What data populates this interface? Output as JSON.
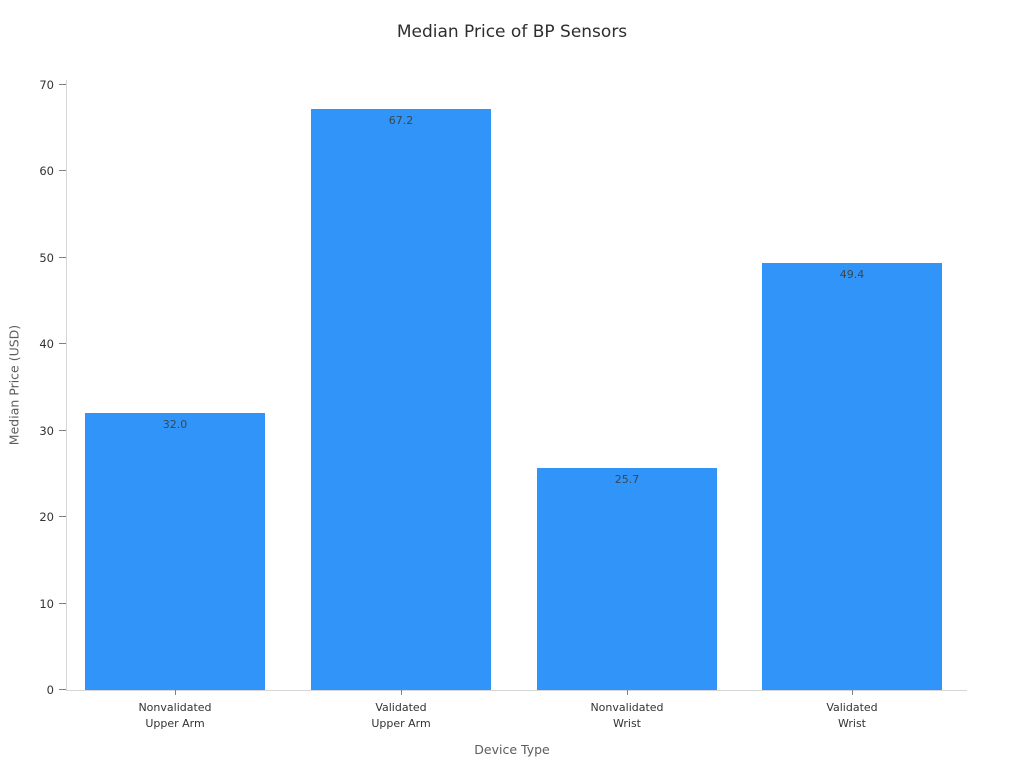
{
  "chart_data": {
    "type": "bar",
    "title": "Median Price of BP Sensors",
    "xlabel": "Device Type",
    "ylabel": "Median Price (USD)",
    "categories": [
      "Nonvalidated Upper Arm",
      "Validated Upper Arm",
      "Nonvalidated Wrist",
      "Validated Wrist"
    ],
    "category_lines": [
      [
        "Nonvalidated",
        "Upper Arm"
      ],
      [
        "Validated",
        "Upper Arm"
      ],
      [
        "Nonvalidated",
        "Wrist"
      ],
      [
        "Validated",
        "Wrist"
      ]
    ],
    "values": [
      32.0,
      67.2,
      25.7,
      49.4
    ],
    "value_labels": [
      "32.0",
      "67.2",
      "25.7",
      "49.4"
    ],
    "ylim": [
      0,
      70
    ],
    "yticks": [
      0,
      10,
      20,
      30,
      40,
      50,
      60,
      70
    ],
    "grid": false,
    "legend_position": "none"
  },
  "colors": {
    "bar": "#3094f8",
    "spine": "#d6d6d6",
    "tick_mark": "#808080",
    "tick_label": "#333333",
    "axis_label": "#5c5c5c",
    "title": "#2e2e2e",
    "value_label": "#3a4750",
    "background": "#ffffff"
  }
}
